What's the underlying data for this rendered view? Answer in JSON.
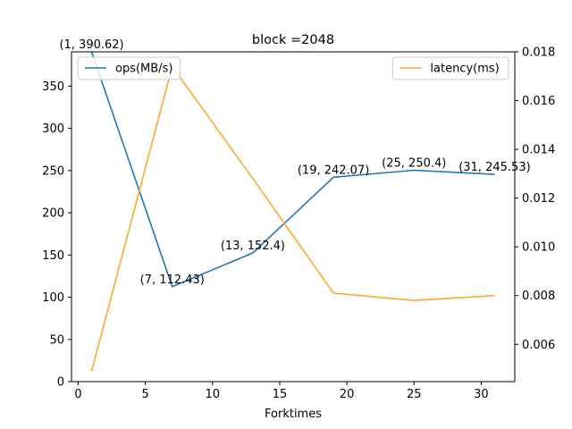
{
  "chart_data": {
    "type": "line",
    "title": "block =2048",
    "xlabel": "Forktimes",
    "ylabel": "",
    "y2label": "",
    "x": [
      1,
      7,
      13,
      19,
      25,
      31
    ],
    "xlim": [
      -0.5,
      32.5
    ],
    "xticks": [
      0,
      5,
      10,
      15,
      20,
      25,
      30
    ],
    "ylim": [
      0,
      390.62
    ],
    "yticks": [
      0,
      50,
      100,
      150,
      200,
      250,
      300,
      350
    ],
    "y2lim": [
      0.00447,
      0.018
    ],
    "y2ticks": [
      0.006,
      0.008,
      0.01,
      0.012,
      0.014,
      0.016,
      0.018
    ],
    "grid": false,
    "series": [
      {
        "name": "ops(MB/s)",
        "axis": "left",
        "color": "#1f77b4",
        "values": [
          390.62,
          112.43,
          152.4,
          242.07,
          250.4,
          245.53
        ],
        "legend": "top-left"
      },
      {
        "name": "latency(ms)",
        "axis": "right",
        "color": "#ffa82e",
        "values": [
          0.0049,
          0.0174,
          0.0128,
          0.0081,
          0.0078,
          0.008
        ],
        "legend": "top-right"
      }
    ],
    "annotations": [
      "(1, 390.62)",
      "(7, 112.43)",
      "(13, 152.4)",
      "(19, 242.07)",
      "(25, 250.4)",
      "(31, 245.53)"
    ]
  }
}
